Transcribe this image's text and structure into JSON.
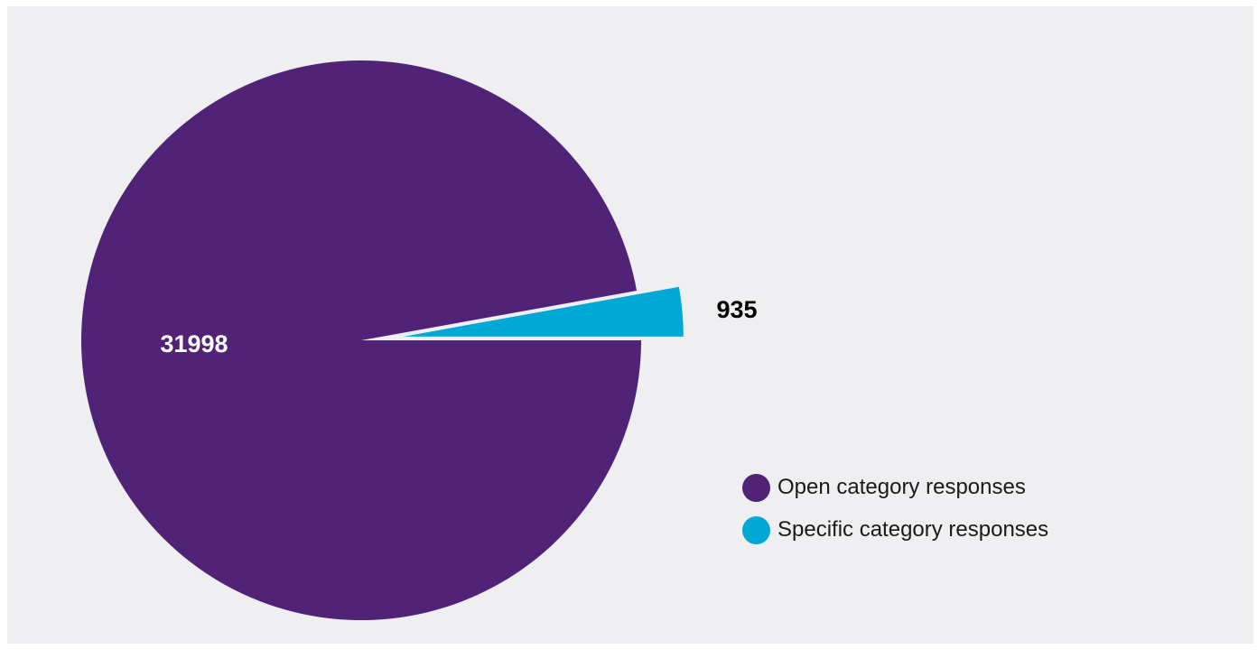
{
  "chart_data": {
    "type": "pie",
    "title": "",
    "categories": [
      "Open category responses",
      "Specific category responses"
    ],
    "values": [
      31998,
      935
    ],
    "colors": [
      "#502376",
      "#00a8d6"
    ],
    "data_labels": [
      "31998",
      "935"
    ],
    "legend": {
      "placement": "right",
      "entries": [
        "Open category responses",
        "Specific category responses"
      ]
    },
    "exploded_slice": "Specific category responses"
  }
}
